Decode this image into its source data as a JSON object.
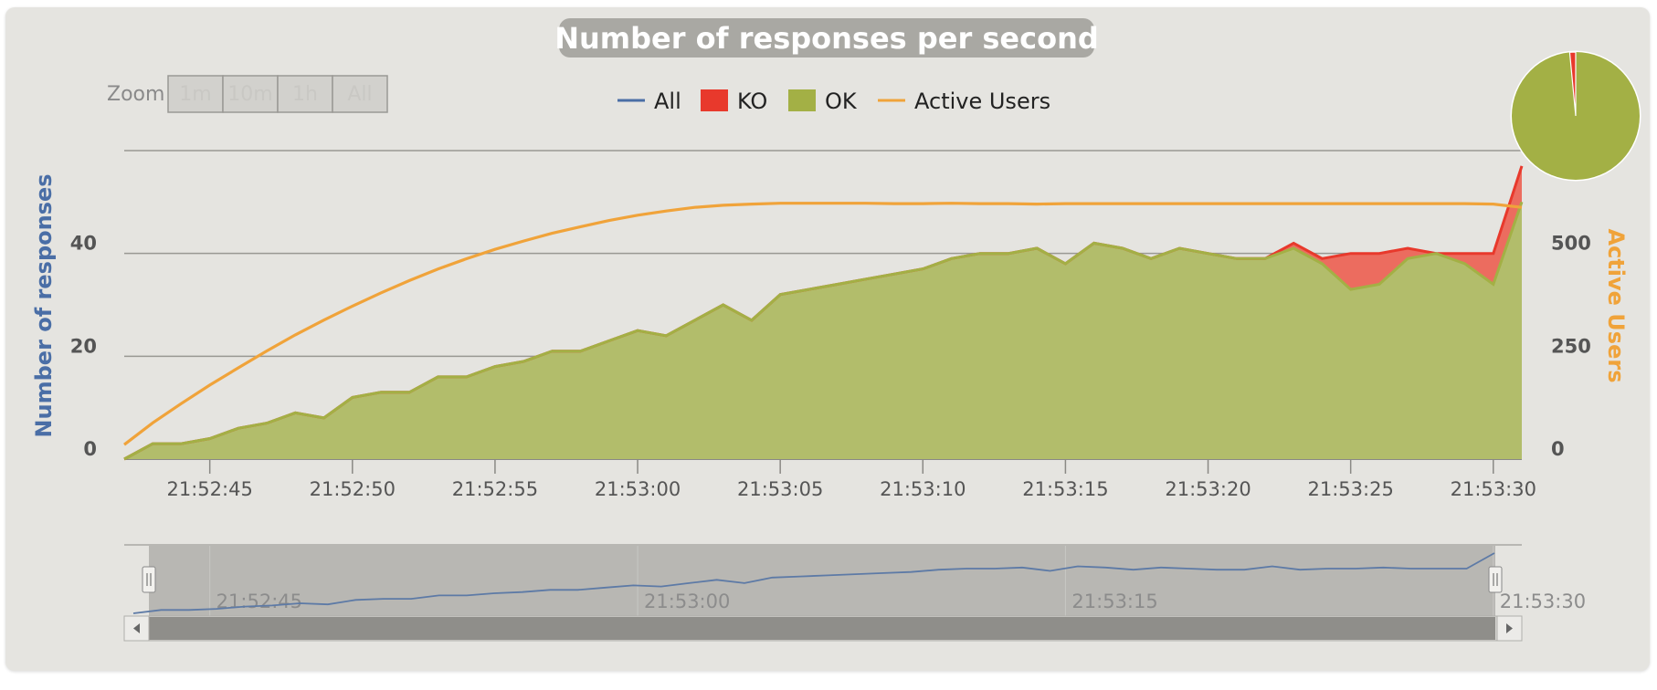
{
  "colors": {
    "all": "#4a6ea6",
    "ko": "#e8392c",
    "ko_fill": "#ec6c5f",
    "ok": "#a3b045",
    "ok_fill": "#b2bd6b",
    "active_users": "#f0a33a",
    "title_bg": "#a9a8a3",
    "panel_bg": "#e5e4e0"
  },
  "zoom": {
    "label": "Zoom",
    "buttons": [
      "1m",
      "10m",
      "1h",
      "All"
    ]
  },
  "navigator": {
    "tick_labels": [
      "21:52:45",
      "21:53:00",
      "21:53:15",
      "21:53:30"
    ]
  },
  "chart_data": {
    "type": "area",
    "title": "Number of responses per second",
    "ylabel": "Number of responses",
    "y2label": "Active Users",
    "ylim": [
      0,
      60
    ],
    "y2lim": [
      0,
      750
    ],
    "yticks": [
      0,
      20,
      40
    ],
    "y2ticks": [
      0,
      250,
      500
    ],
    "x_tick_labels": [
      "21:52:45",
      "21:52:50",
      "21:52:55",
      "21:53:00",
      "21:53:05",
      "21:53:10",
      "21:53:15",
      "21:53:20",
      "21:53:25",
      "21:53:30"
    ],
    "x_start": "21:52:42",
    "x_end": "21:53:31",
    "legend": [
      "All",
      "KO",
      "OK",
      "Active Users"
    ],
    "legend_position": "top-center",
    "grid": true,
    "series": [
      {
        "name": "OK",
        "values": [
          0,
          3,
          3,
          4,
          6,
          7,
          9,
          8,
          12,
          13,
          13,
          16,
          16,
          18,
          19,
          21,
          21,
          23,
          25,
          24,
          27,
          30,
          27,
          32,
          33,
          34,
          35,
          36,
          37,
          39,
          40,
          40,
          41,
          38,
          42,
          41,
          39,
          41,
          40,
          39,
          39,
          41,
          38,
          33,
          34,
          39,
          40,
          38,
          34,
          50
        ]
      },
      {
        "name": "KO",
        "values": [
          0,
          0,
          0,
          0,
          0,
          0,
          0,
          0,
          0,
          0,
          0,
          0,
          0,
          0,
          0,
          0,
          0,
          0,
          0,
          0,
          0,
          0,
          0,
          0,
          0,
          0,
          0,
          0,
          0,
          0,
          0,
          0,
          0,
          0,
          0,
          0,
          0,
          0,
          0,
          0,
          0,
          1,
          1,
          7,
          6,
          2,
          0,
          2,
          6,
          7
        ]
      },
      {
        "name": "All",
        "values": [
          0,
          3,
          3,
          4,
          6,
          7,
          9,
          8,
          12,
          13,
          13,
          16,
          16,
          18,
          19,
          21,
          21,
          23,
          25,
          24,
          27,
          30,
          27,
          32,
          33,
          34,
          35,
          36,
          37,
          39,
          40,
          40,
          41,
          38,
          42,
          41,
          39,
          41,
          40,
          39,
          39,
          42,
          39,
          40,
          40,
          41,
          40,
          40,
          40,
          57
        ]
      },
      {
        "name": "Active Users",
        "values": [
          35,
          88,
          135,
          180,
          222,
          263,
          302,
          338,
          372,
          404,
          434,
          462,
          487,
          510,
          530,
          549,
          565,
          580,
          593,
          603,
          612,
          617,
          620,
          622,
          622,
          622,
          622,
          621,
          621,
          622,
          621,
          621,
          620,
          621,
          621,
          621,
          621,
          621,
          621,
          621,
          621,
          621,
          621,
          621,
          621,
          621,
          621,
          621,
          620,
          612
        ]
      }
    ]
  },
  "pie": {
    "ok_pct": 98.5,
    "ko_pct": 1.5
  }
}
